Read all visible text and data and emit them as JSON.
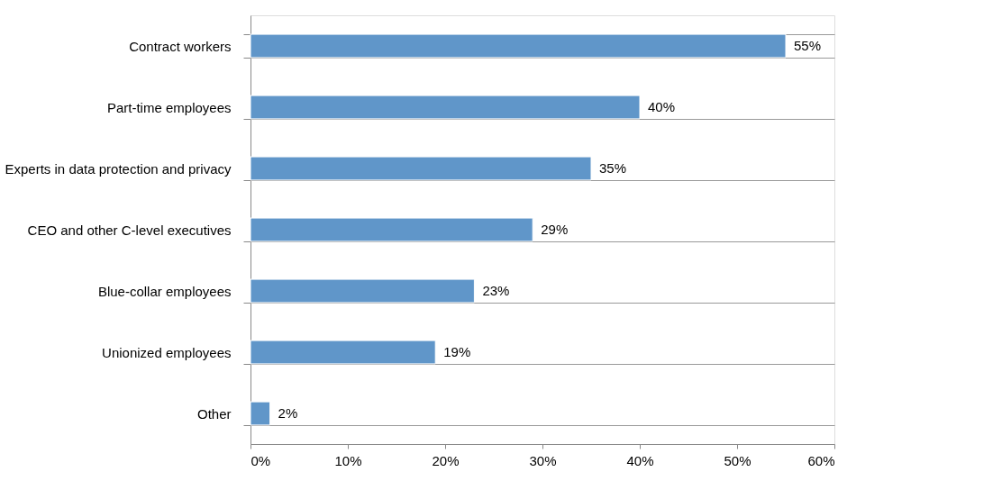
{
  "chart_data": {
    "type": "bar",
    "orientation": "horizontal",
    "categories": [
      "Contract workers",
      "Part-time employees",
      "Experts in data protection and privacy",
      "CEO and other C-level executives",
      "Blue-collar employees",
      "Unionized employees",
      "Other"
    ],
    "values": [
      55,
      40,
      35,
      29,
      23,
      19,
      2
    ],
    "value_labels": [
      "55%",
      "40%",
      "35%",
      "29%",
      "23%",
      "19%",
      "2%"
    ],
    "color": "#6096c9",
    "xlim": [
      0,
      60
    ],
    "xticks": [
      {
        "value": 0,
        "label": "0%"
      },
      {
        "value": 10,
        "label": "10%"
      },
      {
        "value": 20,
        "label": "20%"
      },
      {
        "value": 30,
        "label": "30%"
      },
      {
        "value": 40,
        "label": "40%"
      },
      {
        "value": 50,
        "label": "50%"
      },
      {
        "value": 60,
        "label": "60%"
      }
    ],
    "grid": "y"
  }
}
